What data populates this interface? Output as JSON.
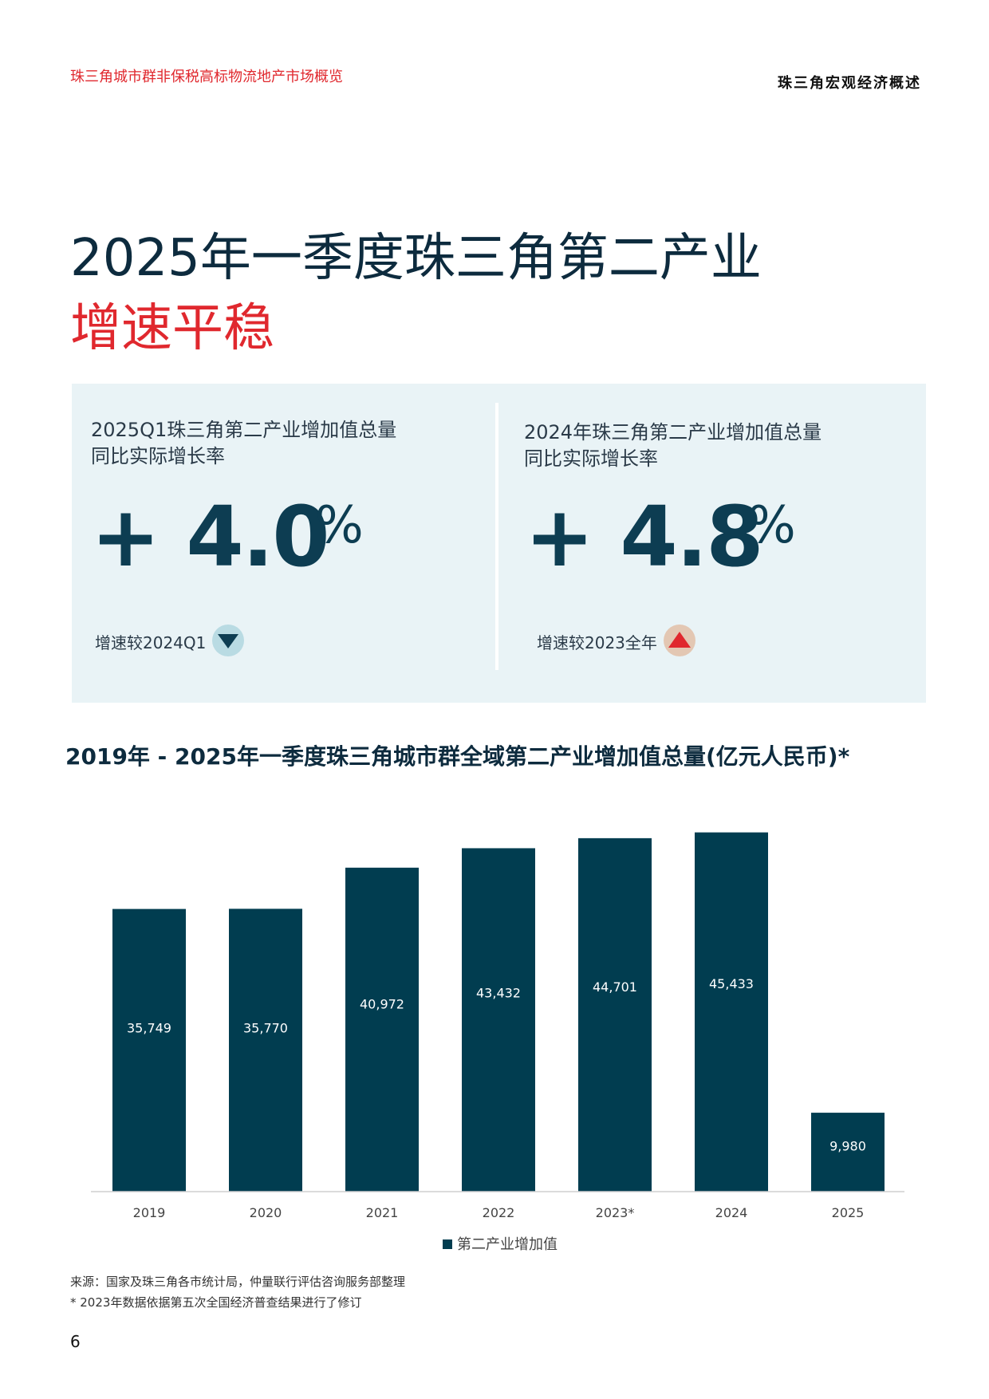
{
  "header": {
    "doc_subtitle": "珠三角城市群非保税高标物流地产市场概览",
    "section_title": "珠三角宏观经济概述"
  },
  "headline": {
    "line1": "2025年一季度珠三角第二产业",
    "line2": "增速平稳"
  },
  "kpis": [
    {
      "label_line1": "2025Q1珠三角第二产业增加值总量",
      "label_line2": "同比实际增长率",
      "value": "+ 4.0",
      "unit": "%",
      "comparison": "增速较2024Q1",
      "trend": "down",
      "icon": "down-triangle-icon",
      "icon_color": "#0d3d52",
      "circle_color": "#b9dbe3"
    },
    {
      "label_line1": "2024年珠三角第二产业增加值总量",
      "label_line2": "同比实际增长率",
      "value": "+ 4.8",
      "unit": "%",
      "comparison": "增速较2023全年",
      "trend": "up",
      "icon": "up-triangle-icon",
      "icon_color": "#e0282e",
      "circle_color": "#e3c7b3"
    }
  ],
  "chart_data": {
    "type": "bar",
    "title": "2019年 - 2025年一季度珠三角城市群全域第二产业增加值总量(亿元人民币)*",
    "categories": [
      "2019",
      "2020",
      "2021",
      "2022",
      "2023*",
      "2024",
      "2025"
    ],
    "values": [
      35749,
      35770,
      40972,
      43432,
      44701,
      45433,
      9980
    ],
    "value_labels": [
      "35,749",
      "35,770",
      "40,972",
      "43,432",
      "44,701",
      "45,433",
      "9,980"
    ],
    "series": [
      {
        "name": "第二产业增加值",
        "values": [
          35749,
          35770,
          40972,
          43432,
          44701,
          45433,
          9980
        ]
      }
    ],
    "legend": "bottom-center",
    "ylim": [
      0,
      46000
    ],
    "grid": false,
    "bar_color": "#013d50"
  },
  "footer": {
    "source": "来源：国家及珠三角各市统计局，仲量联行评估咨询服务部整理",
    "revision": "* 2023年数据依据第五次全国经济普查结果进行了修订",
    "page_number": "6"
  }
}
